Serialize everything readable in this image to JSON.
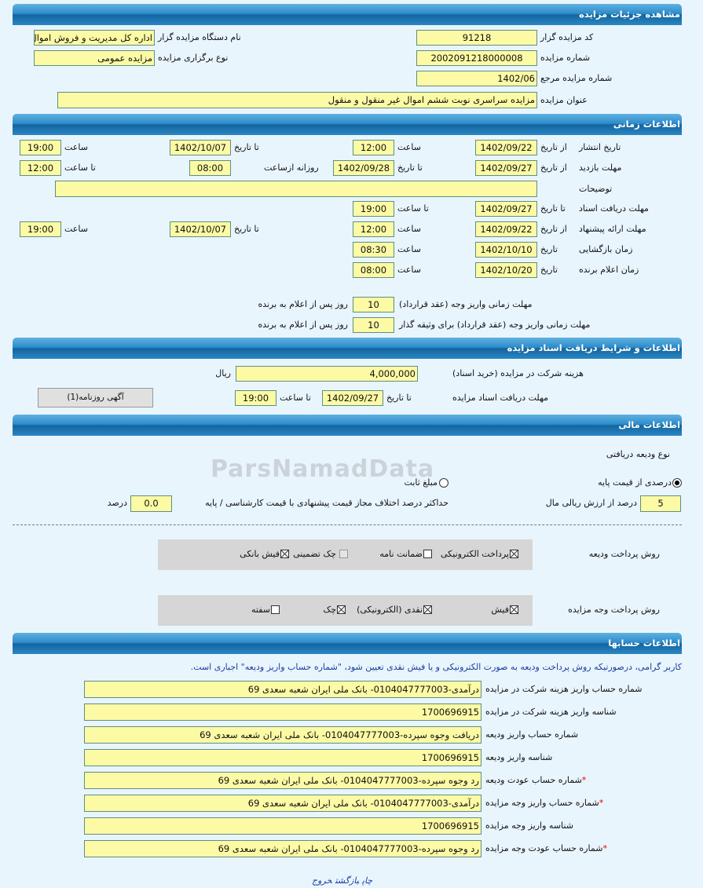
{
  "watermark": "ParsNamadData",
  "sections": {
    "details": "مشاهده جزئیات مزایده",
    "time": "اطلاعات زمانی",
    "docs": "اطلاعات و شرایط دریافت اسناد مزایده",
    "finance": "اطلاعات مالی",
    "accounts": "اطلاعات حسابها"
  },
  "details": {
    "code_label": "کد مزایده گزار",
    "code": "91218",
    "org_label": "نام دستگاه مزایده گزار",
    "org": "اداره کل مدیریت و فروش اموال",
    "number_label": "شماره مزایده",
    "number": "2002091218000008",
    "type_label": "نوع برگزاری مزایده",
    "type": "مزایده عمومی",
    "ref_label": "شماره مزایده مرجع",
    "ref": "1402/06",
    "title_label": "عنوان مزایده",
    "title": "مزایده سراسری نوبت ششم اموال غیر منقول و منقول"
  },
  "time": {
    "from_date": "از تاریخ",
    "to_date": "تا تاریخ",
    "date": "تاریخ",
    "hour": "ساعت",
    "to_hour": "تا ساعت",
    "daily_from": "روزانه ازساعت",
    "publish": {
      "label": "تاریخ انتشار",
      "from": "1402/09/22",
      "from_time": "12:00",
      "to": "1402/10/07",
      "to_time": "19:00"
    },
    "visit": {
      "label": "مهلت بازدید",
      "from": "1402/09/27",
      "to": "1402/09/28",
      "daily_from": "08:00",
      "to_time": "12:00"
    },
    "notes": {
      "label": "توضیحات",
      "value": ""
    },
    "doc_deadline": {
      "label": "مهلت دریافت اسناد",
      "to": "1402/09/27",
      "to_time": "19:00"
    },
    "offer": {
      "label": "مهلت ارائه پیشنهاد",
      "from": "1402/09/22",
      "from_time": "12:00",
      "to": "1402/10/07",
      "to_time": "19:00"
    },
    "opening": {
      "label": "زمان بازگشایی",
      "date": "1402/10/10",
      "time": "08:30"
    },
    "winner": {
      "label": "زمان اعلام برنده",
      "date": "1402/10/20",
      "time": "08:00"
    },
    "pay_contract": {
      "label": "مهلت زمانی واریز وجه (عقد قرارداد)",
      "value": "10",
      "suffix": "روز پس از اعلام به برنده"
    },
    "pay_collateral": {
      "label": "مهلت زمانی واریز وجه (عقد قرارداد) برای وثیقه گذار",
      "value": "10",
      "suffix": "روز پس از اعلام به برنده"
    }
  },
  "docs": {
    "fee_label": "هزینه شرکت در مزایده (خرید اسناد)",
    "fee": "4,000,000",
    "currency": "ریال",
    "deadline_label": "مهلت دریافت اسناد مزایده",
    "to_date_label": "تا تاریخ",
    "to_date": "1402/09/27",
    "to_time_label": "تا ساعت",
    "to_time": "19:00",
    "newspaper_button": "آگهی روزنامه(1)"
  },
  "finance": {
    "deposit_type_label": "نوع ودیعه دریافتی",
    "radio_percent": "درصدی از قیمت پایه",
    "radio_fixed": "مبلغ ثابت",
    "selected": "percent",
    "percent": "5",
    "percent_label": "درصد از ارزش ریالی مال",
    "max_diff_label": "حداکثر درصد اختلاف مجاز قیمت پیشنهادی با قیمت کارشناسی / پایه",
    "max_diff": "0.0",
    "max_diff_unit": "درصد",
    "deposit_methods_label": "روش پرداخت ودیعه",
    "deposit_methods": [
      {
        "label": "پرداخت الکترونیکی",
        "checked": true
      },
      {
        "label": "ضمانت نامه",
        "checked": false
      },
      {
        "label": "چک تضمینی",
        "checked": false,
        "disabled": true
      },
      {
        "label": "فیش بانکی",
        "checked": true
      }
    ],
    "payment_methods_label": "روش پرداخت وجه مزایده",
    "payment_methods": [
      {
        "label": "فیش",
        "checked": true
      },
      {
        "label": "نقدی (الکترونیکی)",
        "checked": true
      },
      {
        "label": "چک",
        "checked": true
      },
      {
        "label": "سفته",
        "checked": false
      }
    ]
  },
  "accounts": {
    "note": "کاربر گرامی، درصورتیکه روش پرداخت ودیعه به صورت الکترونیکی و یا فیش نقدی تعیین شود، \"شماره حساب واریز ودیعه\" اجباری است.",
    "rows": [
      {
        "label": "شماره حساب واریز هزینه شرکت در مزایده",
        "value": "درآمدی-0104047777003- بانک ملی ایران شعبه سعدی 69",
        "required": false
      },
      {
        "label": "شناسه واریز هزینه شرکت در مزایده",
        "value": "1700696915",
        "required": false
      },
      {
        "label": "شماره حساب واریز ودیعه",
        "value": "دریافت وجوه سپرده-0104047777003- بانک ملی ایران شعبه سعدی 69",
        "required": false
      },
      {
        "label": "شناسه واریز ودیعه",
        "value": "1700696915",
        "required": false
      },
      {
        "label": "شماره حساب عودت ودیعه",
        "value": "رد وجوه سپرده-0104047777003- بانک ملی ایران شعبه سعدی 69",
        "required": true
      },
      {
        "label": "شماره حساب واریز وجه مزایده",
        "value": "درآمدی-0104047777003- بانک ملی ایران شعبه سعدی 69",
        "required": true
      },
      {
        "label": "شناسه واریز وجه مزایده",
        "value": "1700696915",
        "required": false
      },
      {
        "label": "شماره حساب عودت وجه مزایده",
        "value": "رد وجوه سپرده-0104047777003- بانک ملی ایران شعبه سعدی 69",
        "required": true
      }
    ],
    "required_mark": "*"
  },
  "footer": {
    "print": "چاپ",
    "back": "بازگشت",
    "exit": "خروج"
  }
}
